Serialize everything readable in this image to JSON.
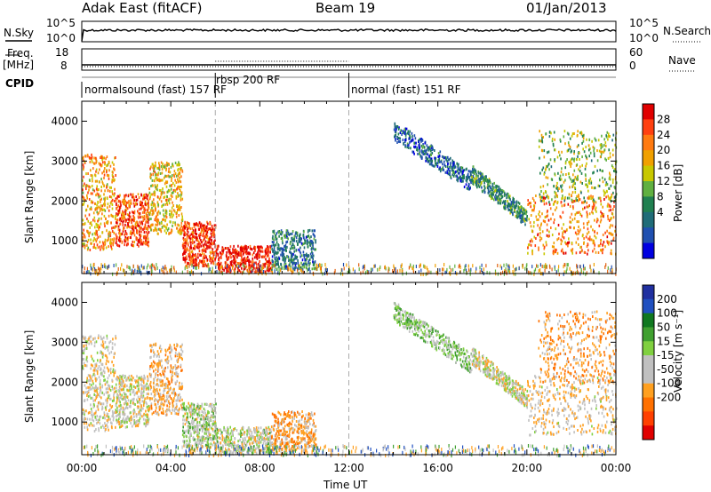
{
  "header": {
    "station": "Adak East (fitACF)",
    "beam": "Beam 19",
    "date": "01/Jan/2013"
  },
  "left_labels": {
    "nsky": "N.Sky",
    "freq": "Freq.",
    "mhz": "[MHz]",
    "cpid": "CPID"
  },
  "right_labels": {
    "nsearch": "N.Search",
    "nave": "Nave"
  },
  "ticks": {
    "noise_left_top": "10^5",
    "noise_left_bottom": "10^0",
    "noise_right_top": "10^5",
    "noise_right_bottom": "10^0",
    "freq_left_top": "18",
    "freq_left_bottom": "8",
    "nave_right_top": "60",
    "nave_right_bottom": "0"
  },
  "cpid_segments": [
    {
      "label": "normalsound (fast) 157 RF",
      "start_hour": 0
    },
    {
      "label": "rbsp 200 RF",
      "start_hour": 6
    },
    {
      "label": "normal (fast) 151 RF",
      "start_hour": 12
    }
  ],
  "power_panel": {
    "ylabel": "Slant Range [km]",
    "colorbar_title": "Power [dB]",
    "colorbar_labels": [
      "28",
      "24",
      "20",
      "16",
      "12",
      "8",
      "4"
    ],
    "colorbar_colors": [
      "#e00000",
      "#ff4010",
      "#ff7a10",
      "#f0a000",
      "#c8c800",
      "#60b040",
      "#208050",
      "#206c78",
      "#2050b0",
      "#0000e0"
    ]
  },
  "velocity_panel": {
    "ylabel": "Slant Range [km]",
    "colorbar_title": "Velocity [m s⁻¹]",
    "colorbar_labels": [
      "200",
      "100",
      "50",
      "15",
      "-15",
      "-50",
      "-100",
      "-200"
    ],
    "colorbar_colors": [
      "#2030a0",
      "#2050c0",
      "#107820",
      "#40a030",
      "#80d040",
      "#c0c0c0",
      "#c0c0c0",
      "#ffa020",
      "#ff7000",
      "#ff4000",
      "#e00000"
    ]
  },
  "chart_data": {
    "type": "heatmap",
    "title": "Adak East (fitACF)  Beam 19  01/Jan/2013",
    "xlabel": "Time UT",
    "ylabel": "Slant Range [km]",
    "x_ticks": [
      "00:00",
      "04:00",
      "08:00",
      "12:00",
      "16:00",
      "20:00",
      "00:00"
    ],
    "y_ticks": [
      1000,
      2000,
      3000,
      4000
    ],
    "xlim_hours": [
      0,
      24
    ],
    "ylim_km": [
      180,
      4500
    ],
    "cpid_boundaries_hours": [
      6,
      12
    ],
    "scatter_regions": [
      {
        "hours": [
          0,
          1.5
        ],
        "range_km": [
          800,
          3200
        ],
        "power_db": 22,
        "velocity": -5
      },
      {
        "hours": [
          1.5,
          3.0
        ],
        "range_km": [
          900,
          2200
        ],
        "power_db": 26,
        "velocity": 0
      },
      {
        "hours": [
          3.0,
          4.5
        ],
        "range_km": [
          1200,
          3000
        ],
        "power_db": 20,
        "velocity": -20
      },
      {
        "hours": [
          4.5,
          6.0
        ],
        "range_km": [
          400,
          1500
        ],
        "power_db": 28,
        "velocity": 10
      },
      {
        "hours": [
          6.0,
          8.5
        ],
        "range_km": [
          250,
          900
        ],
        "power_db": 30,
        "velocity": 5
      },
      {
        "hours": [
          8.5,
          10.5
        ],
        "range_km": [
          300,
          1300
        ],
        "power_db": 10,
        "velocity": -30
      },
      {
        "hours": [
          14.0,
          17.5
        ],
        "range_km": [
          2300,
          3800
        ],
        "power_db": 8,
        "velocity": 20
      },
      {
        "hours": [
          17.5,
          20.0
        ],
        "range_km": [
          1400,
          2700
        ],
        "power_db": 12,
        "velocity": 0
      },
      {
        "hours": [
          20.0,
          24.0
        ],
        "range_km": [
          700,
          2200
        ],
        "power_db": 24,
        "velocity": -10
      },
      {
        "hours": [
          20.5,
          24.0
        ],
        "range_km": [
          2000,
          3800
        ],
        "power_db": 16,
        "velocity": -30
      }
    ]
  }
}
